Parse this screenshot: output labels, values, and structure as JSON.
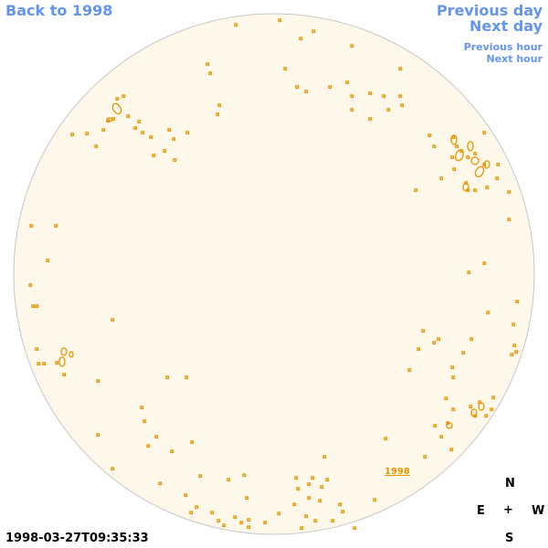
{
  "nav": {
    "back": "Back to 1998",
    "previous_day": "Previous day",
    "next_day": "Next day",
    "previous_hour": "Previous hour",
    "next_hour": "Next hour"
  },
  "compass": {
    "north": "N",
    "south": "S",
    "east": "E",
    "west": "W",
    "center": "+"
  },
  "timestamp": "1998-03-27T09:35:33",
  "year_label": "1998",
  "colors": {
    "disk_fill": "#fdf8ea",
    "disk_stroke": "#c8c8c8",
    "contour": "#e69500",
    "nav": "#6495ed"
  }
}
